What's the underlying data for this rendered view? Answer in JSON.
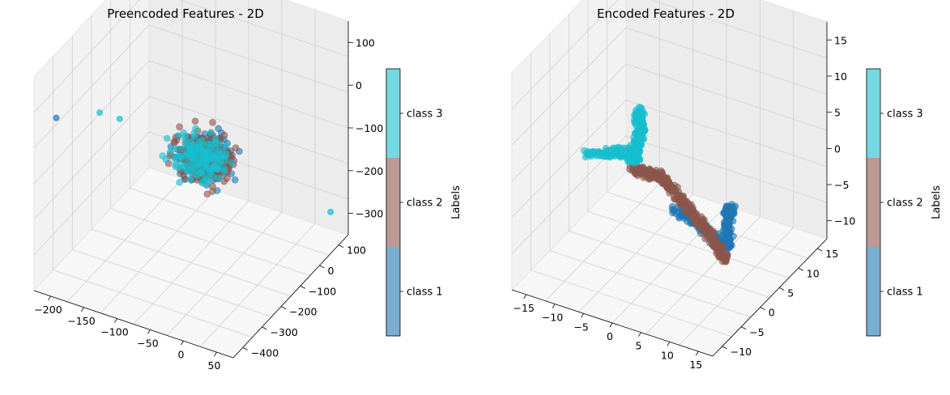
{
  "chart_data": [
    {
      "type": "scatter",
      "projection": "3d",
      "title": "Preencoded Features - 2D",
      "xticks": [
        "−200",
        "−150",
        "−100",
        "−50",
        "0",
        "50"
      ],
      "yticks": [
        "100",
        "0",
        "−100",
        "−200",
        "−300",
        "−400"
      ],
      "zticks": [
        "100",
        "0",
        "−100",
        "−200",
        "−300"
      ],
      "xlim": [
        -230,
        75
      ],
      "ylim": [
        -400,
        100
      ],
      "zlim": [
        -350,
        110
      ],
      "grid": true,
      "colorbar": {
        "label": "Labels",
        "ticks": [
          "class 1",
          "class 2",
          "class 3"
        ],
        "colors": [
          "#1f77b4",
          "#8c564b",
          "#17becf"
        ]
      },
      "series": [
        {
          "name": "class 1",
          "color": "#1f77b4",
          "cluster": {
            "center": [
              5,
              20,
              5
            ],
            "spread": [
              30,
              35,
              35
            ],
            "count": 160
          },
          "outliers": [
            [
              -210,
              60,
              10
            ]
          ]
        },
        {
          "name": "class 2",
          "color": "#8c564b",
          "cluster": {
            "center": [
              0,
              20,
              5
            ],
            "spread": [
              32,
              38,
              38
            ],
            "count": 220
          }
        },
        {
          "name": "class 3",
          "color": "#17becf",
          "cluster": {
            "center": [
              -5,
              20,
              5
            ],
            "spread": [
              30,
              35,
              35
            ],
            "count": 160
          },
          "outliers": [
            [
              -140,
              70,
              60
            ],
            [
              -120,
              40,
              40
            ],
            [
              55,
              -380,
              -300
            ]
          ]
        }
      ]
    },
    {
      "type": "scatter",
      "projection": "3d",
      "title": "Encoded Features - 2D",
      "xticks": [
        "−15",
        "−10",
        "−5",
        "0",
        "5",
        "10",
        "15"
      ],
      "yticks": [
        "15",
        "10",
        "5",
        "0",
        "−5",
        "−10"
      ],
      "zticks": [
        "15",
        "10",
        "5",
        "0",
        "−5",
        "−10"
      ],
      "xlim": [
        -16,
        16
      ],
      "ylim": [
        -12,
        18
      ],
      "zlim": [
        -14,
        20
      ],
      "grid": true,
      "colorbar": {
        "label": "Labels",
        "ticks": [
          "class 1",
          "class 2",
          "class 3"
        ],
        "colors": [
          "#1f77b4",
          "#8c564b",
          "#17becf"
        ]
      },
      "series": [
        {
          "name": "class 1",
          "color": "#1f77b4",
          "path": [
            [
              -3,
              -3,
              -10
            ],
            [
              1,
              -4,
              -12
            ],
            [
              5,
              -1,
              -11
            ],
            [
              8,
              2,
              -9
            ],
            [
              10,
              4,
              -7
            ],
            [
              11,
              6,
              -3
            ],
            [
              12,
              7,
              1
            ],
            [
              13,
              9,
              2
            ]
          ]
        },
        {
          "name": "class 2",
          "color": "#8c564b",
          "path": [
            [
              -3,
              8,
              3
            ],
            [
              0,
              9,
              4
            ],
            [
              3,
              10,
              5
            ],
            [
              6,
              12,
              5
            ],
            [
              9,
              13,
              4
            ],
            [
              12,
              14,
              3
            ],
            [
              15,
              15,
              1
            ],
            [
              17,
              16,
              0
            ]
          ]
        },
        {
          "name": "class 3",
          "color": "#17becf",
          "path": [
            [
              -14,
              2,
              -2
            ],
            [
              -10,
              1,
              -1
            ],
            [
              -6,
              2,
              1
            ],
            [
              -4,
              4,
              6
            ],
            [
              -3,
              6,
              11
            ],
            [
              -4,
              4,
              6
            ],
            [
              -6,
              2,
              1
            ],
            [
              -8,
              0,
              -2
            ],
            [
              -9,
              -3,
              -4
            ]
          ]
        }
      ]
    }
  ]
}
